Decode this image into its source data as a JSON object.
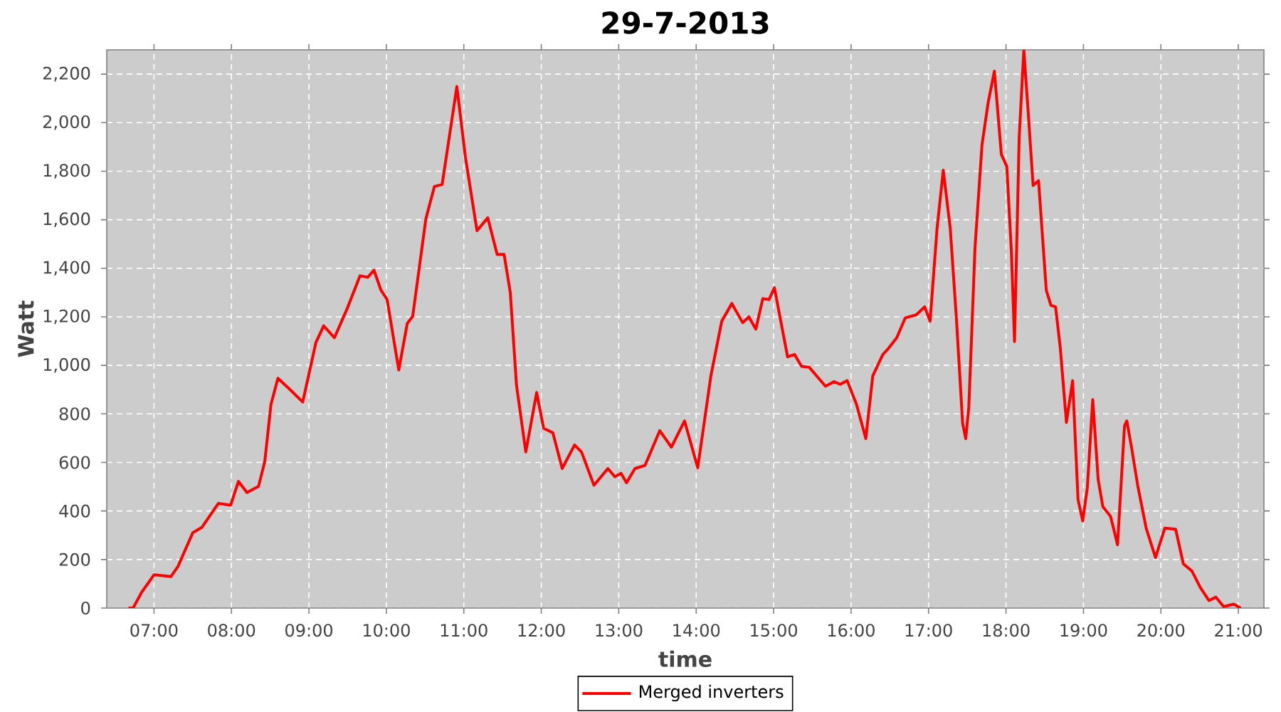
{
  "chart_data": {
    "type": "line",
    "title": "29-7-2013",
    "xlabel": "time",
    "ylabel": "Watt",
    "xlim": [
      6.39,
      21.33
    ],
    "ylim": [
      0,
      2300
    ],
    "xticks": [
      {
        "value": 7,
        "label": "07:00"
      },
      {
        "value": 8,
        "label": "08:00"
      },
      {
        "value": 9,
        "label": "09:00"
      },
      {
        "value": 10,
        "label": "10:00"
      },
      {
        "value": 11,
        "label": "11:00"
      },
      {
        "value": 12,
        "label": "12:00"
      },
      {
        "value": 13,
        "label": "13:00"
      },
      {
        "value": 14,
        "label": "14:00"
      },
      {
        "value": 15,
        "label": "15:00"
      },
      {
        "value": 16,
        "label": "16:00"
      },
      {
        "value": 17,
        "label": "17:00"
      },
      {
        "value": 18,
        "label": "18:00"
      },
      {
        "value": 19,
        "label": "19:00"
      },
      {
        "value": 20,
        "label": "20:00"
      },
      {
        "value": 21,
        "label": "21:00"
      }
    ],
    "yticks": [
      0,
      200,
      400,
      600,
      800,
      {
        "value": 1000,
        "label": "1,000"
      },
      {
        "value": 1200,
        "label": "1,200"
      },
      {
        "value": 1400,
        "label": "1,400"
      },
      {
        "value": 1600,
        "label": "1,600"
      },
      {
        "value": 1800,
        "label": "1,800"
      },
      {
        "value": 2000,
        "label": "2,000"
      },
      {
        "value": 2200,
        "label": "2,200"
      }
    ],
    "grid": true,
    "legend": "bottom",
    "line_style": "solid",
    "x": [
      6.67,
      6.73,
      6.84,
      7.0,
      7.22,
      7.31,
      7.5,
      7.62,
      7.83,
      7.99,
      8.09,
      8.2,
      8.35,
      8.43,
      8.51,
      8.6,
      8.75,
      8.92,
      9.09,
      9.19,
      9.33,
      9.49,
      9.66,
      9.76,
      9.84,
      9.93,
      10.01,
      10.16,
      10.27,
      10.34,
      10.51,
      10.62,
      10.72,
      10.91,
      11.02,
      11.17,
      11.31,
      11.43,
      11.52,
      11.6,
      11.68,
      11.8,
      11.94,
      12.03,
      12.15,
      12.27,
      12.43,
      12.52,
      12.68,
      12.86,
      12.95,
      13.03,
      13.1,
      13.21,
      13.34,
      13.53,
      13.68,
      13.85,
      14.02,
      14.19,
      14.33,
      14.46,
      14.6,
      14.68,
      14.77,
      14.86,
      14.94,
      15.01,
      15.18,
      15.27,
      15.36,
      15.46,
      15.67,
      15.78,
      15.86,
      15.95,
      16.07,
      16.19,
      16.28,
      16.41,
      16.47,
      16.59,
      16.7,
      16.84,
      16.95,
      17.02,
      17.11,
      17.19,
      17.28,
      17.36,
      17.44,
      17.48,
      17.52,
      17.6,
      17.69,
      17.77,
      17.85,
      17.94,
      18.01,
      18.07,
      18.11,
      18.17,
      18.23,
      18.28,
      18.35,
      18.42,
      18.52,
      18.58,
      18.64,
      18.7,
      18.78,
      18.86,
      18.93,
      18.99,
      19.05,
      19.12,
      19.19,
      19.25,
      19.35,
      19.44,
      19.53,
      19.56,
      19.62,
      19.7,
      19.81,
      19.93,
      20.05,
      20.19,
      20.29,
      20.4,
      20.51,
      20.62,
      20.71,
      20.81,
      20.94,
      21.03
    ],
    "series": [
      {
        "name": "Merged inverters",
        "color": "#ff0000",
        "values": [
          0,
          0,
          65,
          137,
          130,
          172,
          310,
          333,
          431,
          424,
          522,
          476,
          502,
          604,
          839,
          947,
          902,
          849,
          1094,
          1163,
          1114,
          1231,
          1369,
          1363,
          1392,
          1310,
          1271,
          981,
          1173,
          1202,
          1604,
          1737,
          1745,
          2149,
          1859,
          1555,
          1608,
          1457,
          1457,
          1300,
          918,
          643,
          888,
          741,
          722,
          575,
          672,
          643,
          506,
          575,
          541,
          555,
          516,
          575,
          588,
          731,
          663,
          771,
          578,
          957,
          1182,
          1255,
          1176,
          1200,
          1149,
          1275,
          1271,
          1320,
          1035,
          1045,
          996,
          992,
          914,
          933,
          922,
          937,
          839,
          698,
          957,
          1045,
          1065,
          1114,
          1196,
          1208,
          1241,
          1182,
          1565,
          1804,
          1565,
          1192,
          761,
          698,
          829,
          1486,
          1908,
          2084,
          2212,
          1869,
          1820,
          1467,
          1098,
          1937,
          2300,
          2074,
          1741,
          1761,
          1310,
          1247,
          1241,
          1075,
          765,
          937,
          447,
          359,
          496,
          859,
          529,
          418,
          378,
          261,
          751,
          771,
          663,
          506,
          329,
          208,
          329,
          325,
          182,
          153,
          84,
          31,
          45,
          6,
          16,
          0
        ]
      }
    ]
  }
}
